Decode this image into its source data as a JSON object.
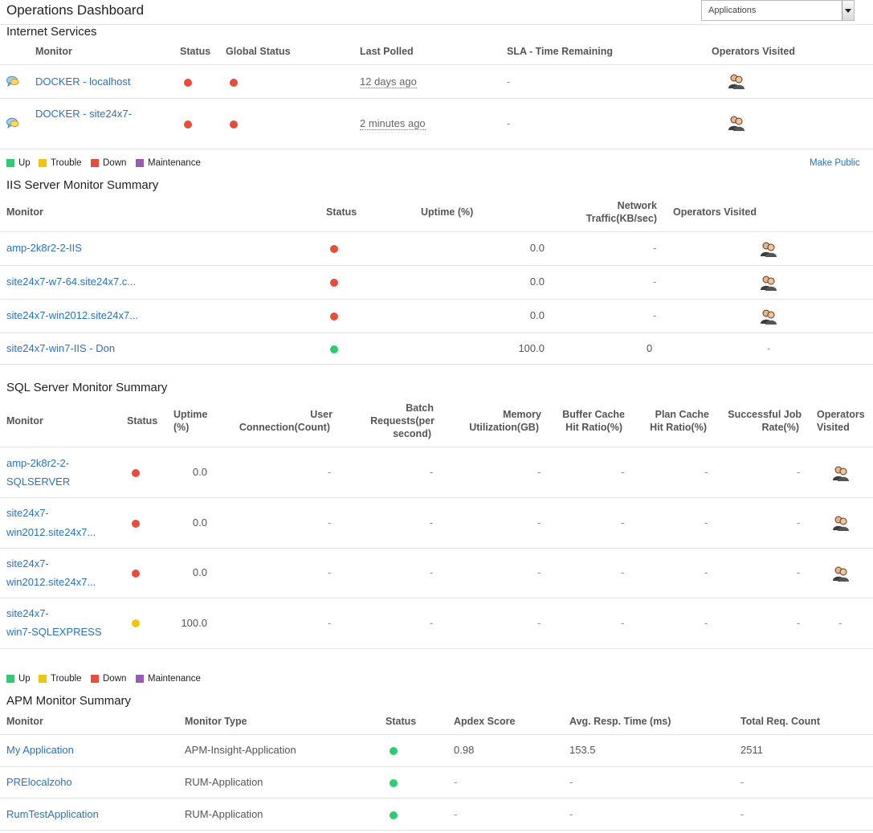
{
  "header": {
    "title": "Operations Dashboard",
    "dropdown_selected": "Applications"
  },
  "colors": {
    "up": "#2ecc71",
    "trouble": "#f1c40f",
    "down": "#e74c3c",
    "maintenance": "#9b59b6",
    "link": "#2a73b8"
  },
  "legend": {
    "up": "Up",
    "trouble": "Trouble",
    "down": "Down",
    "maintenance": "Maintenance"
  },
  "internet_services": {
    "title": "Internet Services",
    "columns": [
      "Monitor",
      "Status",
      "Global Status",
      "Last Polled",
      "SLA - Time Remaining",
      "Operators Visited"
    ],
    "rows": [
      {
        "monitor": "DOCKER - localhost",
        "status": "down",
        "global_status": "down",
        "last_polled": "12 days ago",
        "sla": "-",
        "operators": "operators-icon"
      },
      {
        "monitor": "DOCKER - site24x7-",
        "status": "down",
        "global_status": "down",
        "last_polled": "2 minutes ago",
        "sla": "-",
        "operators": "operators-icon"
      }
    ],
    "make_public": "Make Public"
  },
  "iis": {
    "title": "IIS Server Monitor Summary",
    "columns": {
      "monitor": "Monitor",
      "status": "Status",
      "uptime": "Uptime (%)",
      "network_line1": "Network",
      "network_line2": "Traffic(KB/sec)",
      "operators": "Operators Visited"
    },
    "rows": [
      {
        "monitor": "amp-2k8r2-2-IIS",
        "status": "down",
        "uptime": "0.0",
        "network": "-",
        "operators": "icon"
      },
      {
        "monitor": "site24x7-w7-64.site24x7.c...",
        "status": "down",
        "uptime": "0.0",
        "network": "-",
        "operators": "icon"
      },
      {
        "monitor": "site24x7-win2012.site24x7...",
        "status": "down",
        "uptime": "0.0",
        "network": "-",
        "operators": "icon"
      },
      {
        "monitor": "site24x7-win7-IIS - Don",
        "status": "up",
        "uptime": "100.0",
        "network": "0",
        "operators": "-"
      }
    ]
  },
  "sql": {
    "title": "SQL Server Monitor Summary",
    "columns": {
      "monitor": "Monitor",
      "status": "Status",
      "uptime_1": "Uptime",
      "uptime_2": "(%)",
      "user_1": "User",
      "user_2": "Connection(Count)",
      "batch_1": "Batch",
      "batch_2": "Requests(per",
      "batch_3": "second)",
      "memory_1": "Memory",
      "memory_2": "Utilization(GB)",
      "buffer_1": "Buffer Cache",
      "buffer_2": "Hit Ratio(%)",
      "plan_1": "Plan Cache",
      "plan_2": "Hit Ratio(%)",
      "job_1": "Successful Job",
      "job_2": "Rate(%)",
      "ops_1": "Operators",
      "ops_2": "Visited"
    },
    "rows": [
      {
        "monitor_1": "amp-2k8r2-2-",
        "monitor_2": "SQLSERVER",
        "status": "down",
        "uptime": "0.0",
        "user": "-",
        "batch": "-",
        "memory": "-",
        "buffer": "-",
        "plan": "-",
        "job": "-",
        "operators": "icon"
      },
      {
        "monitor_1": "site24x7-",
        "monitor_2": "win2012.site24x7...",
        "status": "down",
        "uptime": "0.0",
        "user": "-",
        "batch": "-",
        "memory": "-",
        "buffer": "-",
        "plan": "-",
        "job": "-",
        "operators": "icon"
      },
      {
        "monitor_1": "site24x7-",
        "monitor_2": "win2012.site24x7...",
        "status": "down",
        "uptime": "0.0",
        "user": "-",
        "batch": "-",
        "memory": "-",
        "buffer": "-",
        "plan": "-",
        "job": "-",
        "operators": "icon"
      },
      {
        "monitor_1": "site24x7-",
        "monitor_2": "win7-SQLEXPRESS",
        "status": "trouble",
        "uptime": "100.0",
        "user": "-",
        "batch": "-",
        "memory": "-",
        "buffer": "-",
        "plan": "-",
        "job": "-",
        "operators": "-"
      }
    ]
  },
  "apm": {
    "title": "APM Monitor Summary",
    "columns": [
      "Monitor",
      "Monitor Type",
      "Status",
      "Apdex Score",
      "Avg. Resp. Time (ms)",
      "Total Req. Count"
    ],
    "rows": [
      {
        "monitor": "My Application",
        "type": "APM-Insight-Application",
        "status": "up",
        "apdex": "0.98",
        "resp": "153.5",
        "count": "2511"
      },
      {
        "monitor": "PRElocalzoho",
        "type": "RUM-Application",
        "status": "up",
        "apdex": "-",
        "resp": "-",
        "count": "-"
      },
      {
        "monitor": "RumTestApplication",
        "type": "RUM-Application",
        "status": "up",
        "apdex": "-",
        "resp": "-",
        "count": "-"
      }
    ]
  }
}
